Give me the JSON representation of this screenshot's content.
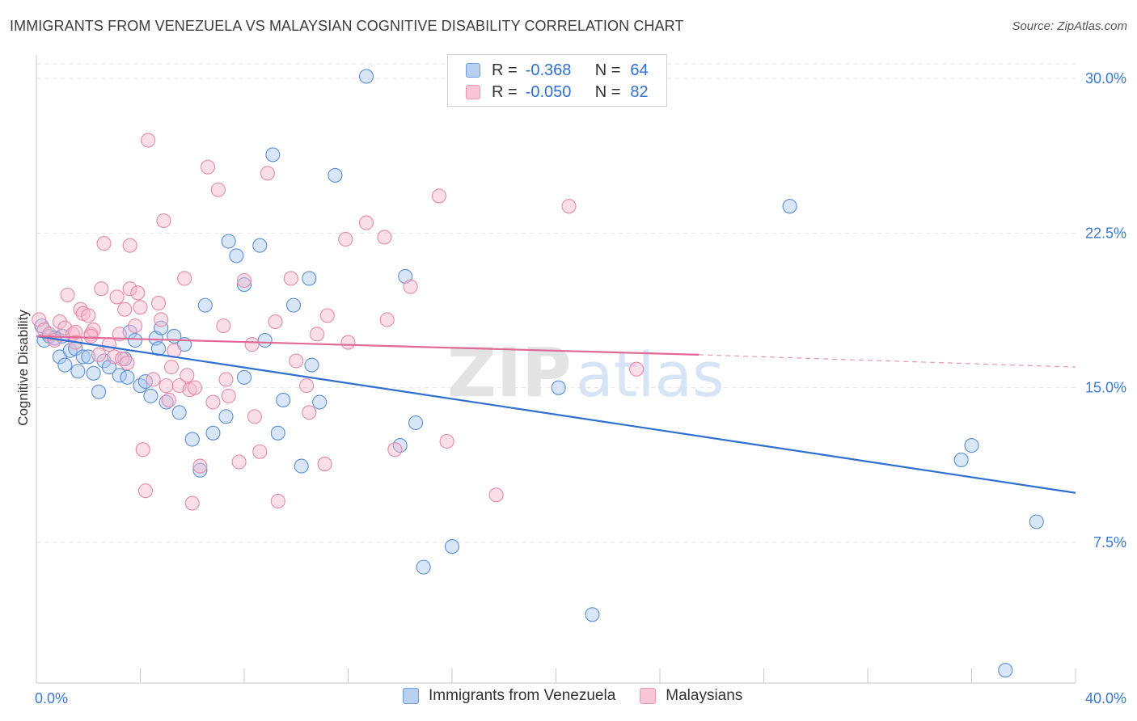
{
  "header": {
    "title": "IMMIGRANTS FROM VENEZUELA VS MALAYSIAN COGNITIVE DISABILITY CORRELATION CHART",
    "source": "Source: ZipAtlas.com"
  },
  "legend": {
    "rows": [
      {
        "r_label": "R =",
        "r_value": "-0.368",
        "n_label": "N =",
        "n_value": "64"
      },
      {
        "r_label": "R =",
        "r_value": "-0.050",
        "n_label": "N =",
        "n_value": "82"
      }
    ]
  },
  "bottom_legend": {
    "items": [
      "Immigrants from Venezuela",
      "Malaysians"
    ]
  },
  "watermark": {
    "zip": "ZIP",
    "atlas": "atlas"
  },
  "chart_data": {
    "type": "scatter",
    "title": "IMMIGRANTS FROM VENEZUELA VS MALAYSIAN COGNITIVE DISABILITY CORRELATION CHART",
    "xlabel": "",
    "ylabel": "Cognitive Disability",
    "xlim": [
      0,
      40
    ],
    "ylim": [
      0,
      30.5
    ],
    "x_tick_labels": [
      "0.0%",
      "40.0%"
    ],
    "y_ticks": [
      7.5,
      15.0,
      22.5,
      30.0
    ],
    "y_tick_labels": [
      "7.5%",
      "15.0%",
      "22.5%",
      "30.0%"
    ],
    "grid": true,
    "colors": {
      "venezuela_fill": "#a9c8f0",
      "venezuela_stroke": "#5b8fd6",
      "venezuela_line": "#2f6fcf",
      "malaysian_fill": "#f6b9cc",
      "malaysian_stroke": "#e58aa8",
      "malaysian_line": "#e06a95",
      "tick_label": "#3a78d0"
    },
    "series": [
      {
        "name": "Immigrants from Venezuela",
        "r": -0.368,
        "n": 64,
        "trend": {
          "x0": 0,
          "y0": 17.5,
          "x1": 40,
          "y1": 9.9
        },
        "points": [
          [
            0.2,
            18.0
          ],
          [
            0.3,
            17.3
          ],
          [
            0.5,
            17.5
          ],
          [
            0.7,
            17.4
          ],
          [
            0.9,
            16.5
          ],
          [
            1.1,
            16.1
          ],
          [
            1.3,
            16.8
          ],
          [
            1.5,
            16.9
          ],
          [
            1.6,
            15.8
          ],
          [
            1.8,
            16.5
          ],
          [
            2.0,
            16.5
          ],
          [
            2.2,
            15.7
          ],
          [
            2.4,
            14.8
          ],
          [
            2.6,
            16.3
          ],
          [
            2.8,
            16.0
          ],
          [
            3.2,
            15.6
          ],
          [
            3.4,
            16.4
          ],
          [
            3.5,
            15.5
          ],
          [
            3.6,
            17.7
          ],
          [
            3.8,
            17.3
          ],
          [
            4.0,
            15.1
          ],
          [
            4.2,
            15.3
          ],
          [
            4.4,
            14.6
          ],
          [
            4.6,
            17.4
          ],
          [
            4.7,
            16.9
          ],
          [
            4.8,
            17.9
          ],
          [
            5.0,
            14.3
          ],
          [
            5.3,
            17.5
          ],
          [
            5.5,
            13.8
          ],
          [
            5.7,
            17.1
          ],
          [
            6.0,
            12.5
          ],
          [
            6.3,
            11.0
          ],
          [
            6.5,
            19.0
          ],
          [
            6.8,
            12.8
          ],
          [
            7.3,
            13.6
          ],
          [
            7.4,
            22.1
          ],
          [
            7.7,
            21.4
          ],
          [
            8.0,
            20.0
          ],
          [
            8.0,
            15.5
          ],
          [
            8.6,
            21.9
          ],
          [
            8.8,
            17.3
          ],
          [
            9.1,
            26.3
          ],
          [
            9.3,
            12.8
          ],
          [
            9.5,
            14.4
          ],
          [
            9.9,
            19.0
          ],
          [
            10.2,
            11.2
          ],
          [
            10.5,
            20.3
          ],
          [
            10.6,
            16.1
          ],
          [
            10.9,
            14.3
          ],
          [
            11.5,
            25.3
          ],
          [
            12.7,
            30.1
          ],
          [
            14.0,
            12.2
          ],
          [
            14.2,
            20.4
          ],
          [
            14.6,
            13.3
          ],
          [
            14.9,
            6.3
          ],
          [
            16.0,
            7.3
          ],
          [
            20.1,
            15.0
          ],
          [
            21.4,
            4.0
          ],
          [
            29.0,
            23.8
          ],
          [
            35.6,
            11.5
          ],
          [
            36.0,
            12.2
          ],
          [
            37.3,
            1.3
          ],
          [
            38.5,
            8.5
          ],
          [
            1.0,
            17.5
          ]
        ]
      },
      {
        "name": "Malaysians",
        "r": -0.05,
        "n": 82,
        "trend": {
          "x0": 0,
          "y0": 17.5,
          "x1": 25.5,
          "y1": 16.6,
          "dash_x1": 40,
          "dash_y1": 16.0
        },
        "points": [
          [
            0.1,
            18.3
          ],
          [
            0.3,
            17.8
          ],
          [
            0.5,
            17.6
          ],
          [
            0.7,
            17.3
          ],
          [
            0.9,
            18.2
          ],
          [
            1.1,
            17.9
          ],
          [
            1.2,
            19.5
          ],
          [
            1.4,
            17.6
          ],
          [
            1.5,
            17.7
          ],
          [
            1.7,
            18.8
          ],
          [
            1.8,
            18.6
          ],
          [
            2.0,
            18.5
          ],
          [
            2.1,
            17.6
          ],
          [
            2.2,
            17.8
          ],
          [
            2.4,
            16.6
          ],
          [
            2.5,
            19.8
          ],
          [
            2.6,
            22.0
          ],
          [
            2.8,
            17.1
          ],
          [
            3.0,
            16.5
          ],
          [
            3.1,
            19.4
          ],
          [
            3.2,
            17.6
          ],
          [
            3.3,
            16.4
          ],
          [
            3.4,
            18.8
          ],
          [
            3.5,
            16.2
          ],
          [
            3.6,
            19.8
          ],
          [
            3.6,
            21.9
          ],
          [
            3.8,
            18.0
          ],
          [
            3.9,
            19.6
          ],
          [
            4.0,
            18.9
          ],
          [
            4.1,
            12.0
          ],
          [
            4.2,
            10.0
          ],
          [
            4.3,
            27.0
          ],
          [
            4.5,
            15.4
          ],
          [
            4.7,
            19.1
          ],
          [
            4.8,
            18.3
          ],
          [
            4.9,
            23.1
          ],
          [
            5.0,
            15.1
          ],
          [
            5.1,
            14.4
          ],
          [
            5.2,
            16.0
          ],
          [
            5.3,
            16.8
          ],
          [
            5.5,
            15.1
          ],
          [
            5.7,
            20.3
          ],
          [
            5.8,
            15.6
          ],
          [
            5.9,
            14.9
          ],
          [
            6.0,
            9.4
          ],
          [
            6.3,
            11.2
          ],
          [
            6.6,
            25.7
          ],
          [
            6.8,
            14.3
          ],
          [
            7.0,
            24.6
          ],
          [
            7.2,
            18.0
          ],
          [
            7.4,
            14.6
          ],
          [
            7.8,
            11.4
          ],
          [
            8.0,
            20.2
          ],
          [
            8.3,
            17.1
          ],
          [
            8.4,
            13.6
          ],
          [
            8.6,
            11.9
          ],
          [
            8.9,
            25.4
          ],
          [
            9.2,
            18.2
          ],
          [
            9.3,
            9.5
          ],
          [
            9.8,
            20.3
          ],
          [
            10.4,
            15.1
          ],
          [
            10.5,
            13.8
          ],
          [
            10.8,
            17.6
          ],
          [
            11.1,
            11.3
          ],
          [
            11.2,
            18.5
          ],
          [
            11.9,
            22.2
          ],
          [
            12.7,
            23.0
          ],
          [
            13.4,
            22.3
          ],
          [
            13.5,
            18.3
          ],
          [
            13.8,
            12.0
          ],
          [
            14.4,
            19.9
          ],
          [
            15.5,
            24.3
          ],
          [
            15.8,
            12.4
          ],
          [
            17.7,
            9.8
          ],
          [
            20.5,
            23.8
          ],
          [
            23.1,
            15.9
          ],
          [
            2.1,
            17.5
          ],
          [
            1.5,
            17.2
          ],
          [
            6.1,
            15.0
          ],
          [
            7.3,
            15.4
          ],
          [
            10.0,
            16.3
          ],
          [
            12.0,
            17.2
          ]
        ]
      }
    ]
  }
}
